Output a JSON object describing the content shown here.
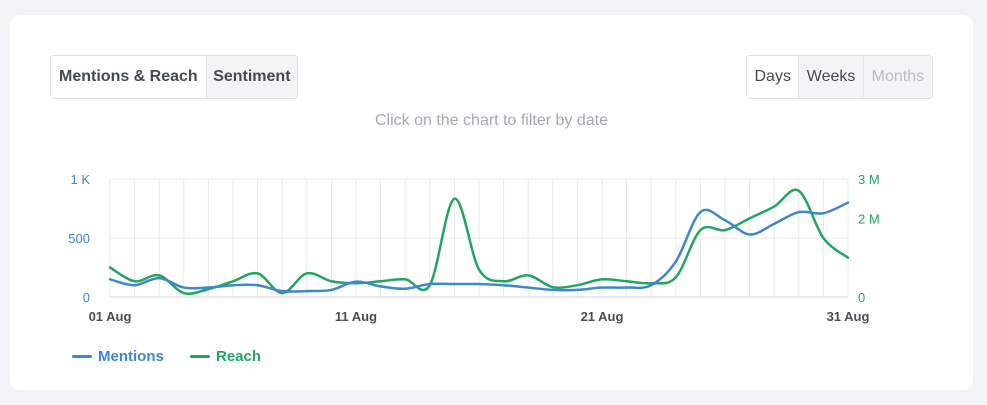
{
  "tabs": {
    "mentions_reach": "Mentions & Reach",
    "sentiment": "Sentiment"
  },
  "period": {
    "days": "Days",
    "weeks": "Weeks",
    "months": "Months"
  },
  "hint": "Click on the chart to filter by date",
  "colors": {
    "mentions": "#3f86d0",
    "reach": "#22a560",
    "grid": "#e6e8eb",
    "axis_text": "#4a4f55"
  },
  "chart_data": {
    "type": "line",
    "x": [
      "01 Aug",
      "02 Aug",
      "03 Aug",
      "04 Aug",
      "05 Aug",
      "06 Aug",
      "07 Aug",
      "08 Aug",
      "09 Aug",
      "10 Aug",
      "11 Aug",
      "12 Aug",
      "13 Aug",
      "14 Aug",
      "15 Aug",
      "16 Aug",
      "17 Aug",
      "18 Aug",
      "19 Aug",
      "20 Aug",
      "21 Aug",
      "22 Aug",
      "23 Aug",
      "24 Aug",
      "25 Aug",
      "26 Aug",
      "27 Aug",
      "28 Aug",
      "29 Aug",
      "30 Aug",
      "31 Aug"
    ],
    "x_ticks": [
      "01 Aug",
      "11 Aug",
      "21 Aug",
      "31 Aug"
    ],
    "series": [
      {
        "name": "Mentions",
        "axis": "left",
        "values": [
          150,
          100,
          160,
          80,
          80,
          100,
          100,
          50,
          50,
          60,
          130,
          90,
          70,
          110,
          110,
          110,
          100,
          80,
          60,
          60,
          80,
          80,
          100,
          300,
          720,
          650,
          530,
          620,
          720,
          710,
          800
        ]
      },
      {
        "name": "Reach",
        "axis": "right",
        "values": [
          750000,
          400000,
          550000,
          100000,
          200000,
          400000,
          600000,
          100000,
          600000,
          400000,
          350000,
          400000,
          450000,
          300000,
          2500000,
          700000,
          400000,
          550000,
          250000,
          300000,
          450000,
          400000,
          350000,
          500000,
          1700000,
          1700000,
          2000000,
          2300000,
          2700000,
          1500000,
          1000000
        ]
      }
    ],
    "y_left": {
      "ylim": [
        0,
        1000
      ],
      "ticks": [
        0,
        500,
        1000
      ],
      "tick_labels": [
        "0",
        "500",
        "1 K"
      ]
    },
    "y_right": {
      "ylim": [
        0,
        3000000
      ],
      "ticks": [
        0,
        2000000,
        3000000
      ],
      "tick_labels": [
        "0",
        "2 M",
        "3 M"
      ]
    },
    "grid": true,
    "legend_position": "bottom-left"
  }
}
